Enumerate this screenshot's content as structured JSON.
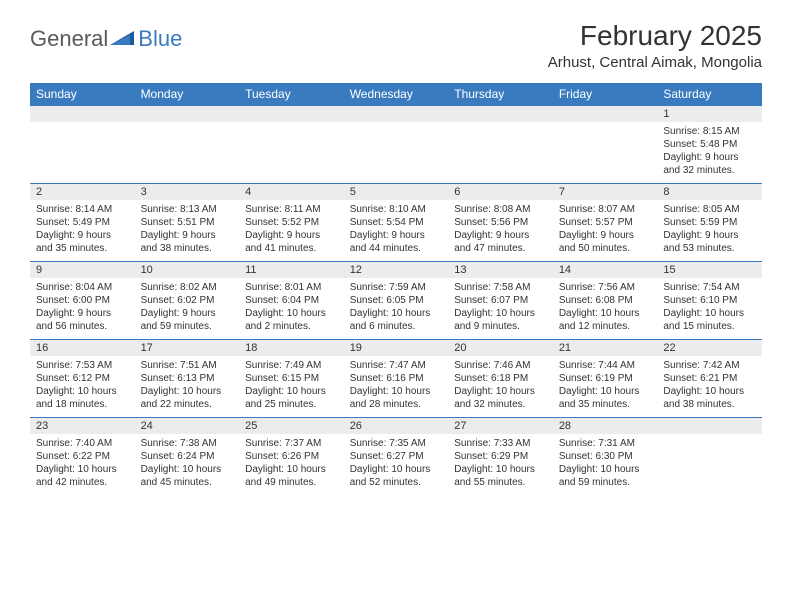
{
  "logo": {
    "text1": "General",
    "text2": "Blue"
  },
  "title": "February 2025",
  "location": "Arhust, Central Aimak, Mongolia",
  "header_bg": "#3a7bbf",
  "header_fg": "#ffffff",
  "row_stripe": "#ececec",
  "divider_color": "#3a7bbf",
  "days": [
    "Sunday",
    "Monday",
    "Tuesday",
    "Wednesday",
    "Thursday",
    "Friday",
    "Saturday"
  ],
  "weeks": [
    [
      null,
      null,
      null,
      null,
      null,
      null,
      {
        "n": "1",
        "sr": "Sunrise: 8:15 AM",
        "ss": "Sunset: 5:48 PM",
        "dl1": "Daylight: 9 hours",
        "dl2": "and 32 minutes."
      }
    ],
    [
      {
        "n": "2",
        "sr": "Sunrise: 8:14 AM",
        "ss": "Sunset: 5:49 PM",
        "dl1": "Daylight: 9 hours",
        "dl2": "and 35 minutes."
      },
      {
        "n": "3",
        "sr": "Sunrise: 8:13 AM",
        "ss": "Sunset: 5:51 PM",
        "dl1": "Daylight: 9 hours",
        "dl2": "and 38 minutes."
      },
      {
        "n": "4",
        "sr": "Sunrise: 8:11 AM",
        "ss": "Sunset: 5:52 PM",
        "dl1": "Daylight: 9 hours",
        "dl2": "and 41 minutes."
      },
      {
        "n": "5",
        "sr": "Sunrise: 8:10 AM",
        "ss": "Sunset: 5:54 PM",
        "dl1": "Daylight: 9 hours",
        "dl2": "and 44 minutes."
      },
      {
        "n": "6",
        "sr": "Sunrise: 8:08 AM",
        "ss": "Sunset: 5:56 PM",
        "dl1": "Daylight: 9 hours",
        "dl2": "and 47 minutes."
      },
      {
        "n": "7",
        "sr": "Sunrise: 8:07 AM",
        "ss": "Sunset: 5:57 PM",
        "dl1": "Daylight: 9 hours",
        "dl2": "and 50 minutes."
      },
      {
        "n": "8",
        "sr": "Sunrise: 8:05 AM",
        "ss": "Sunset: 5:59 PM",
        "dl1": "Daylight: 9 hours",
        "dl2": "and 53 minutes."
      }
    ],
    [
      {
        "n": "9",
        "sr": "Sunrise: 8:04 AM",
        "ss": "Sunset: 6:00 PM",
        "dl1": "Daylight: 9 hours",
        "dl2": "and 56 minutes."
      },
      {
        "n": "10",
        "sr": "Sunrise: 8:02 AM",
        "ss": "Sunset: 6:02 PM",
        "dl1": "Daylight: 9 hours",
        "dl2": "and 59 minutes."
      },
      {
        "n": "11",
        "sr": "Sunrise: 8:01 AM",
        "ss": "Sunset: 6:04 PM",
        "dl1": "Daylight: 10 hours",
        "dl2": "and 2 minutes."
      },
      {
        "n": "12",
        "sr": "Sunrise: 7:59 AM",
        "ss": "Sunset: 6:05 PM",
        "dl1": "Daylight: 10 hours",
        "dl2": "and 6 minutes."
      },
      {
        "n": "13",
        "sr": "Sunrise: 7:58 AM",
        "ss": "Sunset: 6:07 PM",
        "dl1": "Daylight: 10 hours",
        "dl2": "and 9 minutes."
      },
      {
        "n": "14",
        "sr": "Sunrise: 7:56 AM",
        "ss": "Sunset: 6:08 PM",
        "dl1": "Daylight: 10 hours",
        "dl2": "and 12 minutes."
      },
      {
        "n": "15",
        "sr": "Sunrise: 7:54 AM",
        "ss": "Sunset: 6:10 PM",
        "dl1": "Daylight: 10 hours",
        "dl2": "and 15 minutes."
      }
    ],
    [
      {
        "n": "16",
        "sr": "Sunrise: 7:53 AM",
        "ss": "Sunset: 6:12 PM",
        "dl1": "Daylight: 10 hours",
        "dl2": "and 18 minutes."
      },
      {
        "n": "17",
        "sr": "Sunrise: 7:51 AM",
        "ss": "Sunset: 6:13 PM",
        "dl1": "Daylight: 10 hours",
        "dl2": "and 22 minutes."
      },
      {
        "n": "18",
        "sr": "Sunrise: 7:49 AM",
        "ss": "Sunset: 6:15 PM",
        "dl1": "Daylight: 10 hours",
        "dl2": "and 25 minutes."
      },
      {
        "n": "19",
        "sr": "Sunrise: 7:47 AM",
        "ss": "Sunset: 6:16 PM",
        "dl1": "Daylight: 10 hours",
        "dl2": "and 28 minutes."
      },
      {
        "n": "20",
        "sr": "Sunrise: 7:46 AM",
        "ss": "Sunset: 6:18 PM",
        "dl1": "Daylight: 10 hours",
        "dl2": "and 32 minutes."
      },
      {
        "n": "21",
        "sr": "Sunrise: 7:44 AM",
        "ss": "Sunset: 6:19 PM",
        "dl1": "Daylight: 10 hours",
        "dl2": "and 35 minutes."
      },
      {
        "n": "22",
        "sr": "Sunrise: 7:42 AM",
        "ss": "Sunset: 6:21 PM",
        "dl1": "Daylight: 10 hours",
        "dl2": "and 38 minutes."
      }
    ],
    [
      {
        "n": "23",
        "sr": "Sunrise: 7:40 AM",
        "ss": "Sunset: 6:22 PM",
        "dl1": "Daylight: 10 hours",
        "dl2": "and 42 minutes."
      },
      {
        "n": "24",
        "sr": "Sunrise: 7:38 AM",
        "ss": "Sunset: 6:24 PM",
        "dl1": "Daylight: 10 hours",
        "dl2": "and 45 minutes."
      },
      {
        "n": "25",
        "sr": "Sunrise: 7:37 AM",
        "ss": "Sunset: 6:26 PM",
        "dl1": "Daylight: 10 hours",
        "dl2": "and 49 minutes."
      },
      {
        "n": "26",
        "sr": "Sunrise: 7:35 AM",
        "ss": "Sunset: 6:27 PM",
        "dl1": "Daylight: 10 hours",
        "dl2": "and 52 minutes."
      },
      {
        "n": "27",
        "sr": "Sunrise: 7:33 AM",
        "ss": "Sunset: 6:29 PM",
        "dl1": "Daylight: 10 hours",
        "dl2": "and 55 minutes."
      },
      {
        "n": "28",
        "sr": "Sunrise: 7:31 AM",
        "ss": "Sunset: 6:30 PM",
        "dl1": "Daylight: 10 hours",
        "dl2": "and 59 minutes."
      },
      null
    ]
  ]
}
